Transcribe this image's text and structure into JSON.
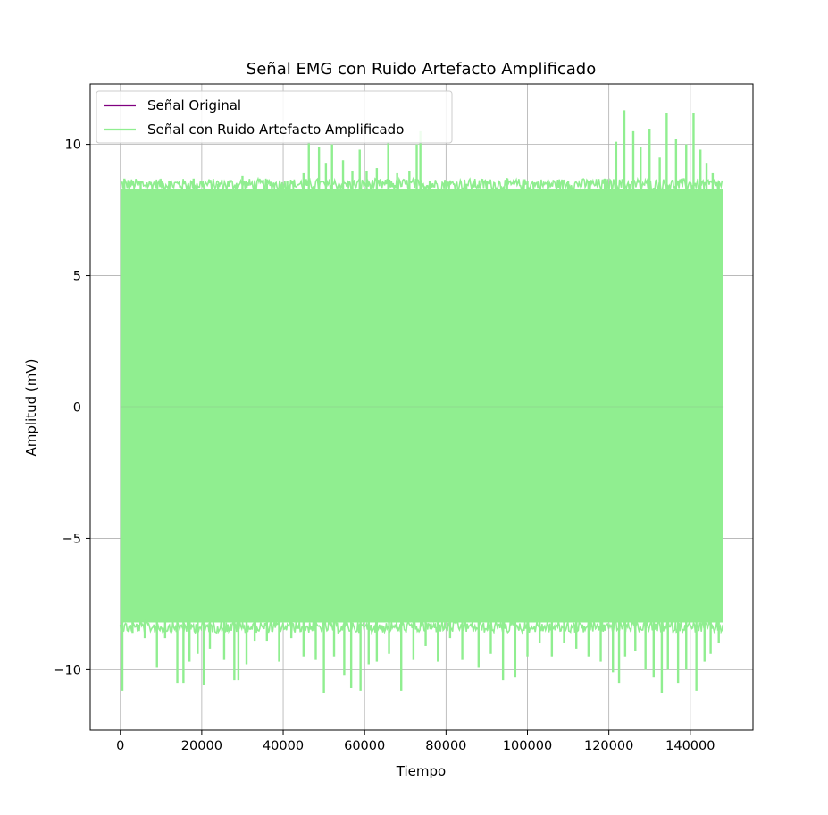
{
  "chart_data": {
    "type": "line",
    "title": "Señal EMG con Ruido Artefacto Amplificado",
    "xlabel": "Tiempo",
    "ylabel": "Amplitud (mV)",
    "xlim": [
      -7400,
      155400
    ],
    "ylim": [
      -12.3,
      12.3
    ],
    "x_ticks": [
      0,
      20000,
      40000,
      60000,
      80000,
      100000,
      120000,
      140000
    ],
    "x_tick_labels": [
      "0",
      "20000",
      "40000",
      "60000",
      "80000",
      "100000",
      "120000",
      "140000"
    ],
    "y_ticks": [
      -10,
      -5,
      0,
      5,
      10
    ],
    "y_tick_labels": [
      "−10",
      "−5",
      "0",
      "5",
      "10"
    ],
    "grid": true,
    "legend_position": "top-left",
    "x_range": [
      0,
      148000
    ],
    "series": [
      {
        "name": "Señal Original",
        "color": "#800080",
        "envelope_upper": 0,
        "envelope_lower": 0
      },
      {
        "name": "Señal con Ruido Artefacto Amplificado",
        "color": "#90ee90",
        "envelope_upper": 8.3,
        "envelope_lower": -8.2,
        "peaks": [
          {
            "x": 1000,
            "y": 8.7
          },
          {
            "x": 5000,
            "y": 8.6
          },
          {
            "x": 12000,
            "y": 8.6
          },
          {
            "x": 18000,
            "y": 8.7
          },
          {
            "x": 24000,
            "y": 8.5
          },
          {
            "x": 30000,
            "y": 8.8
          },
          {
            "x": 36000,
            "y": 8.5
          },
          {
            "x": 41000,
            "y": 8.6
          },
          {
            "x": 45000,
            "y": 8.9
          },
          {
            "x": 46300,
            "y": 10.1
          },
          {
            "x": 48800,
            "y": 9.9
          },
          {
            "x": 50500,
            "y": 9.3
          },
          {
            "x": 52000,
            "y": 10.0
          },
          {
            "x": 54700,
            "y": 9.4
          },
          {
            "x": 57000,
            "y": 9.0
          },
          {
            "x": 58800,
            "y": 9.8
          },
          {
            "x": 60500,
            "y": 9.0
          },
          {
            "x": 63000,
            "y": 9.1
          },
          {
            "x": 65800,
            "y": 10.1
          },
          {
            "x": 68000,
            "y": 8.9
          },
          {
            "x": 71000,
            "y": 9.0
          },
          {
            "x": 72800,
            "y": 10.0
          },
          {
            "x": 73700,
            "y": 10.5
          },
          {
            "x": 76000,
            "y": 8.6
          },
          {
            "x": 80000,
            "y": 8.6
          },
          {
            "x": 85000,
            "y": 8.5
          },
          {
            "x": 90000,
            "y": 8.6
          },
          {
            "x": 95000,
            "y": 8.6
          },
          {
            "x": 100000,
            "y": 8.6
          },
          {
            "x": 105000,
            "y": 8.6
          },
          {
            "x": 110000,
            "y": 8.6
          },
          {
            "x": 115000,
            "y": 8.6
          },
          {
            "x": 119000,
            "y": 8.7
          },
          {
            "x": 121800,
            "y": 10.1
          },
          {
            "x": 123800,
            "y": 11.3
          },
          {
            "x": 126000,
            "y": 10.5
          },
          {
            "x": 127800,
            "y": 9.9
          },
          {
            "x": 130000,
            "y": 10.6
          },
          {
            "x": 132500,
            "y": 9.5
          },
          {
            "x": 134200,
            "y": 11.2
          },
          {
            "x": 136500,
            "y": 10.2
          },
          {
            "x": 139000,
            "y": 10.0
          },
          {
            "x": 140800,
            "y": 11.2
          },
          {
            "x": 142500,
            "y": 9.8
          },
          {
            "x": 144000,
            "y": 9.3
          },
          {
            "x": 145500,
            "y": 8.9
          },
          {
            "x": 147000,
            "y": 8.6
          }
        ],
        "troughs": [
          {
            "x": 500,
            "y": -10.8
          },
          {
            "x": 3000,
            "y": -8.6
          },
          {
            "x": 6000,
            "y": -8.8
          },
          {
            "x": 9000,
            "y": -9.9
          },
          {
            "x": 11000,
            "y": -8.8
          },
          {
            "x": 14000,
            "y": -10.5
          },
          {
            "x": 15500,
            "y": -10.5
          },
          {
            "x": 17000,
            "y": -9.7
          },
          {
            "x": 19000,
            "y": -9.4
          },
          {
            "x": 20500,
            "y": -10.6
          },
          {
            "x": 22000,
            "y": -9.2
          },
          {
            "x": 25500,
            "y": -9.6
          },
          {
            "x": 28000,
            "y": -10.4
          },
          {
            "x": 29000,
            "y": -10.4
          },
          {
            "x": 31000,
            "y": -9.8
          },
          {
            "x": 33000,
            "y": -8.9
          },
          {
            "x": 36000,
            "y": -8.9
          },
          {
            "x": 39000,
            "y": -9.7
          },
          {
            "x": 42000,
            "y": -8.8
          },
          {
            "x": 45000,
            "y": -9.5
          },
          {
            "x": 48000,
            "y": -9.6
          },
          {
            "x": 50000,
            "y": -10.9
          },
          {
            "x": 52500,
            "y": -9.5
          },
          {
            "x": 55000,
            "y": -10.2
          },
          {
            "x": 56700,
            "y": -10.7
          },
          {
            "x": 59000,
            "y": -10.8
          },
          {
            "x": 61000,
            "y": -9.8
          },
          {
            "x": 63000,
            "y": -9.7
          },
          {
            "x": 66000,
            "y": -9.4
          },
          {
            "x": 69000,
            "y": -10.8
          },
          {
            "x": 72000,
            "y": -9.6
          },
          {
            "x": 75000,
            "y": -9.1
          },
          {
            "x": 78000,
            "y": -9.7
          },
          {
            "x": 81000,
            "y": -8.8
          },
          {
            "x": 84000,
            "y": -9.6
          },
          {
            "x": 88000,
            "y": -9.9
          },
          {
            "x": 91000,
            "y": -9.4
          },
          {
            "x": 94000,
            "y": -10.4
          },
          {
            "x": 97000,
            "y": -10.3
          },
          {
            "x": 100000,
            "y": -9.5
          },
          {
            "x": 103000,
            "y": -9.0
          },
          {
            "x": 106000,
            "y": -9.5
          },
          {
            "x": 109000,
            "y": -9.0
          },
          {
            "x": 112000,
            "y": -9.2
          },
          {
            "x": 115000,
            "y": -9.5
          },
          {
            "x": 118000,
            "y": -9.7
          },
          {
            "x": 121000,
            "y": -10.1
          },
          {
            "x": 122500,
            "y": -10.5
          },
          {
            "x": 124000,
            "y": -9.5
          },
          {
            "x": 126500,
            "y": -9.3
          },
          {
            "x": 129000,
            "y": -10.0
          },
          {
            "x": 131000,
            "y": -10.3
          },
          {
            "x": 133000,
            "y": -10.9
          },
          {
            "x": 134500,
            "y": -10.0
          },
          {
            "x": 137000,
            "y": -10.5
          },
          {
            "x": 139000,
            "y": -10.0
          },
          {
            "x": 141500,
            "y": -10.8
          },
          {
            "x": 143500,
            "y": -9.7
          },
          {
            "x": 145000,
            "y": -9.4
          },
          {
            "x": 147000,
            "y": -9.0
          }
        ]
      }
    ]
  }
}
